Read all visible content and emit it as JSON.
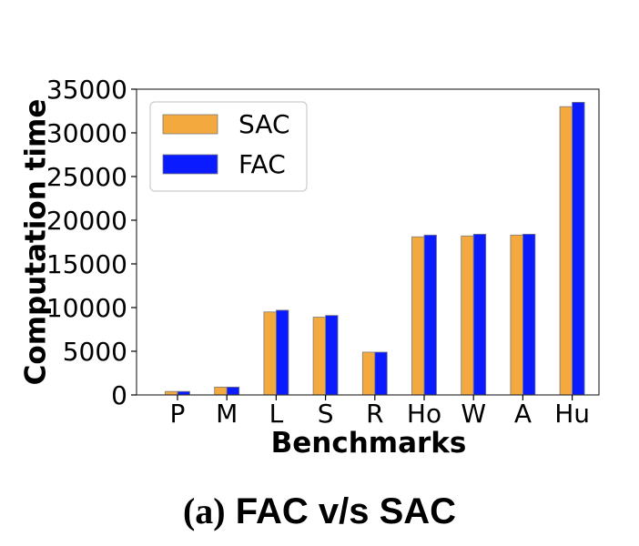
{
  "chart_data": {
    "type": "bar",
    "categories": [
      "P",
      "M",
      "L",
      "S",
      "R",
      "Ho",
      "W",
      "A",
      "Hu"
    ],
    "series": [
      {
        "name": "SAC",
        "color": "#F4A93F",
        "values": [
          400,
          900,
          9500,
          8900,
          4900,
          18100,
          18200,
          18300,
          33000
        ]
      },
      {
        "name": "FAC",
        "color": "#0A1CFF",
        "values": [
          400,
          900,
          9700,
          9100,
          4900,
          18300,
          18400,
          18400,
          33500
        ]
      }
    ],
    "xlabel": "Benchmarks",
    "ylabel": "Computation time",
    "ylim": [
      0,
      35000
    ],
    "yticks": [
      0,
      5000,
      10000,
      15000,
      20000,
      25000,
      30000,
      35000
    ],
    "legend_position": "top-left",
    "grid": false
  },
  "caption": {
    "label": "(a)",
    "text": "FAC v/s SAC"
  }
}
